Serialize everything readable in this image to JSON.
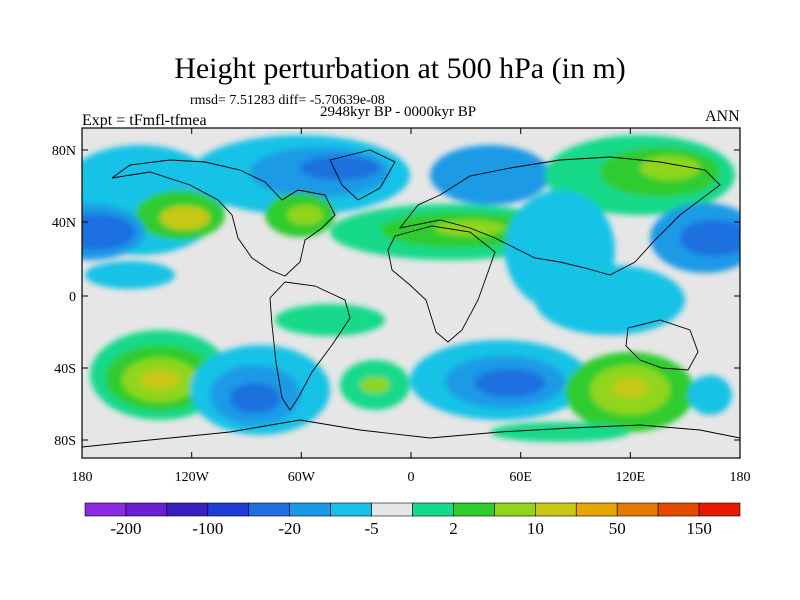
{
  "header": {
    "title": "Height perturbation at 500 hPa (in m)",
    "stats": "rmsd= 7.51283 diff= -5.70639e-08",
    "period": "2948kyr BP - 0000kyr BP",
    "experiment": "Expt = tFmfl-tfmea",
    "season": "ANN"
  },
  "map": {
    "lat_labels": [
      "80N",
      "40N",
      "0",
      "40S",
      "80S"
    ],
    "lon_labels": [
      "180",
      "120W",
      "60W",
      "0",
      "60E",
      "120E",
      "180"
    ]
  },
  "colorbar": {
    "colors": [
      "#8a2be2",
      "#6a1fd0",
      "#3a1fc0",
      "#1e3cd8",
      "#1f6fe0",
      "#1a9ae6",
      "#18c2e6",
      "#e6e6e6",
      "#17d98a",
      "#2fcc2f",
      "#8fd61e",
      "#c8c814",
      "#e6a800",
      "#e67a00",
      "#e64a00",
      "#e61a00"
    ],
    "labels": [
      "-200",
      "-100",
      "-20",
      "-5",
      "2",
      "10",
      "50",
      "150"
    ]
  }
}
